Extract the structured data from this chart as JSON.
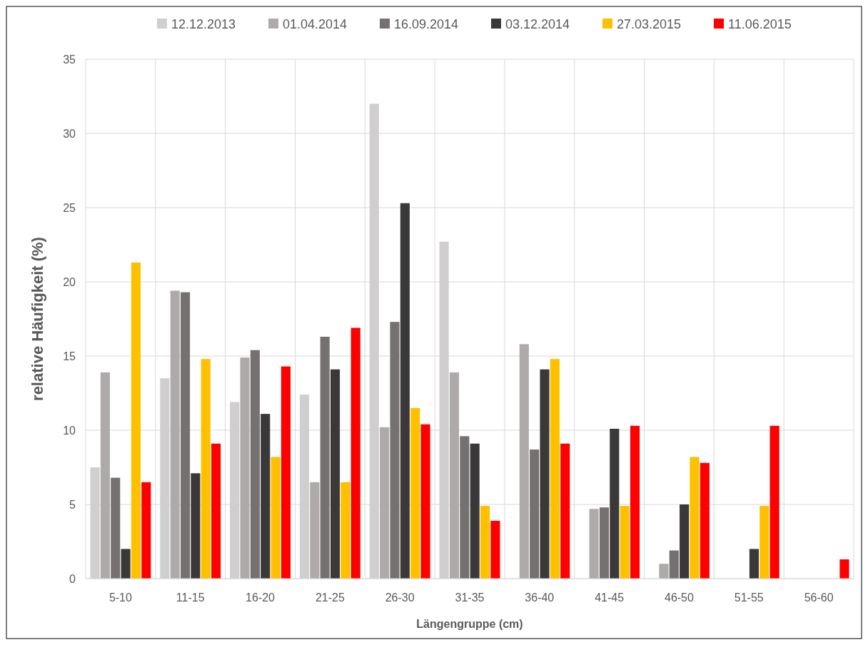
{
  "chart_data": {
    "type": "bar",
    "xlabel": "Längengruppe (cm)",
    "ylabel": "relative Häufigkeit (%)",
    "categories": [
      "5-10",
      "11-15",
      "16-20",
      "21-25",
      "26-30",
      "31-35",
      "36-40",
      "41-45",
      "46-50",
      "51-55",
      "56-60"
    ],
    "series": [
      {
        "name": "12.12.2013",
        "color": "#d0cece",
        "values": [
          7.5,
          13.5,
          11.9,
          12.4,
          32.0,
          22.7,
          0,
          0,
          0,
          0,
          0
        ]
      },
      {
        "name": "01.04.2014",
        "color": "#aeaaaa",
        "values": [
          13.9,
          19.4,
          14.9,
          6.5,
          10.2,
          13.9,
          15.8,
          4.7,
          1.0,
          0,
          0
        ]
      },
      {
        "name": "16.09.2014",
        "color": "#767171",
        "values": [
          6.8,
          19.3,
          15.4,
          16.3,
          17.3,
          9.6,
          8.7,
          4.8,
          1.9,
          0,
          0
        ]
      },
      {
        "name": "03.12.2014",
        "color": "#3a3838",
        "values": [
          2.0,
          7.1,
          11.1,
          14.1,
          25.3,
          9.1,
          14.1,
          10.1,
          5.0,
          2.0,
          0
        ]
      },
      {
        "name": "27.03.2015",
        "color": "#ffc000",
        "values": [
          21.3,
          14.8,
          8.2,
          6.5,
          11.5,
          4.9,
          14.8,
          4.9,
          8.2,
          4.9,
          0
        ]
      },
      {
        "name": "11.06.2015",
        "color": "#ff0000",
        "values": [
          6.5,
          9.1,
          14.3,
          16.9,
          10.4,
          3.9,
          9.1,
          10.3,
          7.8,
          10.3,
          1.3
        ]
      }
    ],
    "ylim": [
      0,
      35
    ],
    "yticks": [
      0,
      5,
      10,
      15,
      20,
      25,
      30,
      35
    ],
    "grid": true,
    "legend": "top"
  }
}
